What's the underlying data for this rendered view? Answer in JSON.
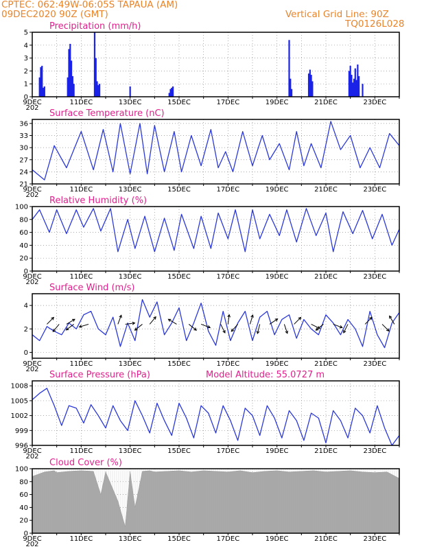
{
  "header": {
    "line1": "CPTEC:   062:49W-06:05S   TAPAUA (AM)",
    "line2": "09DEC2020 90Z (GMT)",
    "vgrid": "Vertical Grid Line: 90Z",
    "code": "TQ0126L028"
  },
  "x_ticks": [
    "9DEC",
    "11DEC",
    "13DEC",
    "15DEC",
    "17DEC",
    "19DEC",
    "21DEC",
    "23DEC"
  ],
  "x_tick_stub": "202",
  "colors": {
    "line": "#2b38d8",
    "bar": "#1a22e8",
    "cloud": "#a9a9a9",
    "title": "#e0208c",
    "header": "#e8842a"
  },
  "chart_data": [
    {
      "id": "precip",
      "type": "bar",
      "title": "Precipitation (mm/h)",
      "ylim": [
        0,
        5
      ],
      "yticks": [
        0,
        1,
        2,
        3,
        4,
        5
      ],
      "x_days_range": [
        0,
        15
      ],
      "x": [
        0.3,
        0.35,
        0.4,
        0.45,
        0.5,
        1.45,
        1.5,
        1.55,
        1.6,
        1.65,
        1.7,
        2.55,
        2.6,
        2.65,
        2.7,
        2.75,
        4.0,
        5.6,
        5.65,
        5.7,
        5.75,
        10.5,
        10.55,
        10.6,
        11.3,
        11.35,
        11.4,
        11.45,
        12.95,
        13.0,
        13.05,
        13.1,
        13.15,
        13.2,
        13.25,
        13.3,
        13.35,
        13.5
      ],
      "values": [
        1.5,
        2.3,
        2.4,
        0.7,
        0.8,
        1.5,
        3.7,
        4.1,
        2.8,
        1.6,
        1.0,
        5.0,
        3.0,
        1.2,
        0.9,
        1.0,
        0.8,
        0.3,
        0.6,
        0.7,
        0.8,
        4.4,
        1.4,
        0.6,
        1.8,
        2.1,
        1.7,
        1.2,
        2.0,
        2.4,
        1.7,
        1.1,
        1.4,
        2.2,
        1.3,
        2.5,
        1.6,
        1.0
      ]
    },
    {
      "id": "temp",
      "type": "line",
      "title": "Surface Temperature (nC)",
      "ylim": [
        21,
        37
      ],
      "yticks": [
        21,
        24,
        27,
        30,
        33,
        36
      ],
      "x_days_range": [
        0,
        15
      ],
      "x": [
        0.0,
        0.5,
        0.9,
        1.4,
        2.0,
        2.5,
        2.9,
        3.3,
        3.6,
        4.0,
        4.4,
        4.7,
        5.0,
        5.4,
        5.8,
        6.1,
        6.5,
        6.9,
        7.3,
        7.6,
        7.9,
        8.2,
        8.6,
        9.0,
        9.4,
        9.7,
        10.1,
        10.5,
        10.8,
        11.1,
        11.4,
        11.8,
        12.2,
        12.6,
        13.0,
        13.4,
        13.8,
        14.2,
        14.6,
        15.0
      ],
      "values": [
        24.5,
        22.0,
        30.5,
        25.0,
        34.0,
        24.5,
        34.5,
        24.0,
        36.0,
        23.5,
        36.0,
        23.5,
        35.5,
        24.0,
        34.0,
        24.0,
        33.0,
        25.5,
        34.5,
        25.0,
        29.0,
        24.0,
        34.0,
        25.5,
        33.0,
        27.0,
        31.0,
        24.5,
        34.0,
        25.5,
        31.0,
        25.0,
        36.5,
        29.5,
        33.0,
        25.0,
        30.0,
        25.0,
        33.5,
        30.5
      ]
    },
    {
      "id": "rh",
      "type": "line",
      "title": "Relative Humidity (%)",
      "ylim": [
        0,
        100
      ],
      "yticks": [
        0,
        20,
        40,
        60,
        80,
        100
      ],
      "x_days_range": [
        0,
        15
      ],
      "x": [
        0.0,
        0.3,
        0.7,
        1.0,
        1.4,
        1.8,
        2.1,
        2.5,
        2.8,
        3.2,
        3.5,
        3.9,
        4.2,
        4.6,
        5.0,
        5.4,
        5.8,
        6.1,
        6.6,
        6.9,
        7.3,
        7.6,
        8.0,
        8.3,
        8.7,
        9.0,
        9.3,
        9.7,
        10.1,
        10.4,
        10.8,
        11.2,
        11.6,
        12.0,
        12.3,
        12.7,
        13.1,
        13.5,
        13.9,
        14.3,
        14.7,
        15.0
      ],
      "values": [
        80,
        95,
        60,
        95,
        58,
        95,
        68,
        97,
        62,
        97,
        30,
        80,
        35,
        85,
        30,
        82,
        32,
        88,
        35,
        85,
        35,
        90,
        50,
        95,
        30,
        95,
        50,
        88,
        55,
        95,
        45,
        97,
        55,
        90,
        30,
        92,
        58,
        94,
        50,
        88,
        40,
        65
      ]
    },
    {
      "id": "wind",
      "type": "line",
      "title": "Surface Wind (m/s)",
      "ylim": [
        -0.5,
        5
      ],
      "yticks": [
        0,
        2,
        4
      ],
      "x_days_range": [
        0,
        15
      ],
      "x": [
        0.0,
        0.3,
        0.6,
        0.9,
        1.2,
        1.5,
        1.8,
        2.1,
        2.4,
        2.7,
        3.0,
        3.3,
        3.6,
        3.9,
        4.2,
        4.5,
        4.8,
        5.1,
        5.4,
        5.7,
        6.0,
        6.3,
        6.6,
        6.9,
        7.2,
        7.5,
        7.8,
        8.1,
        8.4,
        8.7,
        9.0,
        9.3,
        9.6,
        9.9,
        10.2,
        10.5,
        10.8,
        11.1,
        11.4,
        11.7,
        12.0,
        12.3,
        12.6,
        12.9,
        13.2,
        13.5,
        13.8,
        14.1,
        14.4,
        14.7,
        15.0
      ],
      "values": [
        1.5,
        1.0,
        2.2,
        1.8,
        1.5,
        2.5,
        2.0,
        3.2,
        3.5,
        2.0,
        1.5,
        3.0,
        0.5,
        2.5,
        1.0,
        4.5,
        3.0,
        4.3,
        1.5,
        2.5,
        3.8,
        1.0,
        2.5,
        4.2,
        1.8,
        0.6,
        3.5,
        1.0,
        2.5,
        3.5,
        1.0,
        3.0,
        3.5,
        1.5,
        2.8,
        3.2,
        1.2,
        2.8,
        2.0,
        1.5,
        3.2,
        2.5,
        1.5,
        2.8,
        2.0,
        0.5,
        3.5,
        1.5,
        0.4,
        2.5,
        3.4
      ],
      "arrows": [
        {
          "x": 0.6,
          "u": 0.4,
          "v": 0.4
        },
        {
          "x": 1.1,
          "u": -0.5,
          "v": -0.6
        },
        {
          "x": 1.4,
          "u": 0.5,
          "v": 0.3
        },
        {
          "x": 1.7,
          "u": -0.4,
          "v": -0.3
        },
        {
          "x": 2.3,
          "u": -1.0,
          "v": -0.3
        },
        {
          "x": 3.5,
          "u": 0.3,
          "v": 0.8
        },
        {
          "x": 3.8,
          "u": 0.8,
          "v": 0.1
        },
        {
          "x": 4.5,
          "u": -1.0,
          "v": -0.8
        },
        {
          "x": 4.8,
          "u": 0.5,
          "v": 0.6
        },
        {
          "x": 5.9,
          "u": -0.5,
          "v": 0.3
        },
        {
          "x": 6.4,
          "u": 0.5,
          "v": -0.4
        },
        {
          "x": 6.9,
          "u": 0.8,
          "v": -0.3
        },
        {
          "x": 7.7,
          "u": 0.4,
          "v": -0.8
        },
        {
          "x": 8.0,
          "u": 0.1,
          "v": 0.8
        },
        {
          "x": 8.4,
          "u": -0.8,
          "v": -0.9
        },
        {
          "x": 8.9,
          "u": 0.3,
          "v": 1.0
        },
        {
          "x": 9.3,
          "u": -0.2,
          "v": -0.8
        },
        {
          "x": 9.7,
          "u": 0.6,
          "v": 0.4
        },
        {
          "x": 10.3,
          "u": 0.3,
          "v": -0.9
        },
        {
          "x": 10.7,
          "u": 0.5,
          "v": 0.5
        },
        {
          "x": 11.4,
          "u": 0.4,
          "v": -0.2
        },
        {
          "x": 11.9,
          "u": -0.5,
          "v": -0.4
        },
        {
          "x": 12.3,
          "u": 0.8,
          "v": -0.3
        },
        {
          "x": 12.9,
          "u": -0.3,
          "v": -0.6
        },
        {
          "x": 13.6,
          "u": 0.5,
          "v": 0.5
        },
        {
          "x": 14.3,
          "u": 0.3,
          "v": -0.3
        },
        {
          "x": 14.8,
          "u": -0.3,
          "v": 0.5
        }
      ]
    },
    {
      "id": "pres",
      "type": "line",
      "title": "Surface Pressure (hPa)",
      "extra": "Model Altitude: 55.0727 m",
      "ylim": [
        996,
        1009
      ],
      "yticks": [
        996,
        999,
        1002,
        1005,
        1008
      ],
      "x_days_range": [
        0,
        15
      ],
      "x": [
        0.0,
        0.3,
        0.6,
        0.9,
        1.2,
        1.5,
        1.8,
        2.1,
        2.4,
        2.7,
        3.0,
        3.3,
        3.6,
        3.9,
        4.2,
        4.5,
        4.8,
        5.1,
        5.4,
        5.7,
        6.0,
        6.3,
        6.6,
        6.9,
        7.2,
        7.5,
        7.8,
        8.1,
        8.4,
        8.7,
        9.0,
        9.3,
        9.6,
        9.9,
        10.2,
        10.5,
        10.8,
        11.1,
        11.4,
        11.7,
        12.0,
        12.3,
        12.6,
        12.9,
        13.2,
        13.5,
        13.8,
        14.1,
        14.4,
        14.7,
        15.0
      ],
      "values": [
        1005.2,
        1006.5,
        1007.5,
        1004.0,
        1000.0,
        1004.0,
        1003.5,
        1000.5,
        1004.2,
        1002.0,
        999.5,
        1004.0,
        1001.0,
        999.0,
        1005.0,
        1002.0,
        998.5,
        1004.5,
        1001.0,
        998.0,
        1004.5,
        1001.5,
        997.5,
        1004.0,
        1002.5,
        998.5,
        1004.0,
        1001.0,
        997.0,
        1003.5,
        1002.0,
        998.0,
        1004.0,
        1001.5,
        997.5,
        1003.0,
        1001.0,
        997.0,
        1002.5,
        1001.5,
        996.5,
        1003.0,
        1001.0,
        997.5,
        1003.5,
        1002.0,
        998.5,
        1004.0,
        999.5,
        996.0,
        998.0
      ]
    },
    {
      "id": "cloud",
      "type": "area",
      "title": "Cloud Cover (%)",
      "ylim": [
        0,
        100
      ],
      "yticks": [
        0,
        20,
        40,
        60,
        80,
        100
      ],
      "x_days_range": [
        0,
        15
      ],
      "x": [
        0.0,
        0.5,
        0.9,
        1.0,
        1.5,
        2.0,
        2.5,
        2.8,
        3.0,
        3.5,
        3.8,
        4.0,
        4.2,
        4.5,
        4.8,
        5.0,
        5.5,
        6.0,
        6.5,
        7.0,
        7.5,
        8.0,
        8.5,
        9.0,
        9.5,
        10.0,
        10.5,
        11.0,
        11.5,
        12.0,
        12.5,
        13.0,
        13.5,
        14.0,
        14.5,
        15.0
      ],
      "values": [
        88,
        95,
        97,
        94,
        96,
        97,
        96,
        60,
        95,
        50,
        10,
        95,
        40,
        96,
        97,
        95,
        96,
        97,
        95,
        97,
        96,
        95,
        97,
        94,
        96,
        97,
        95,
        96,
        97,
        95,
        96,
        97,
        95,
        94,
        95,
        85
      ]
    }
  ]
}
